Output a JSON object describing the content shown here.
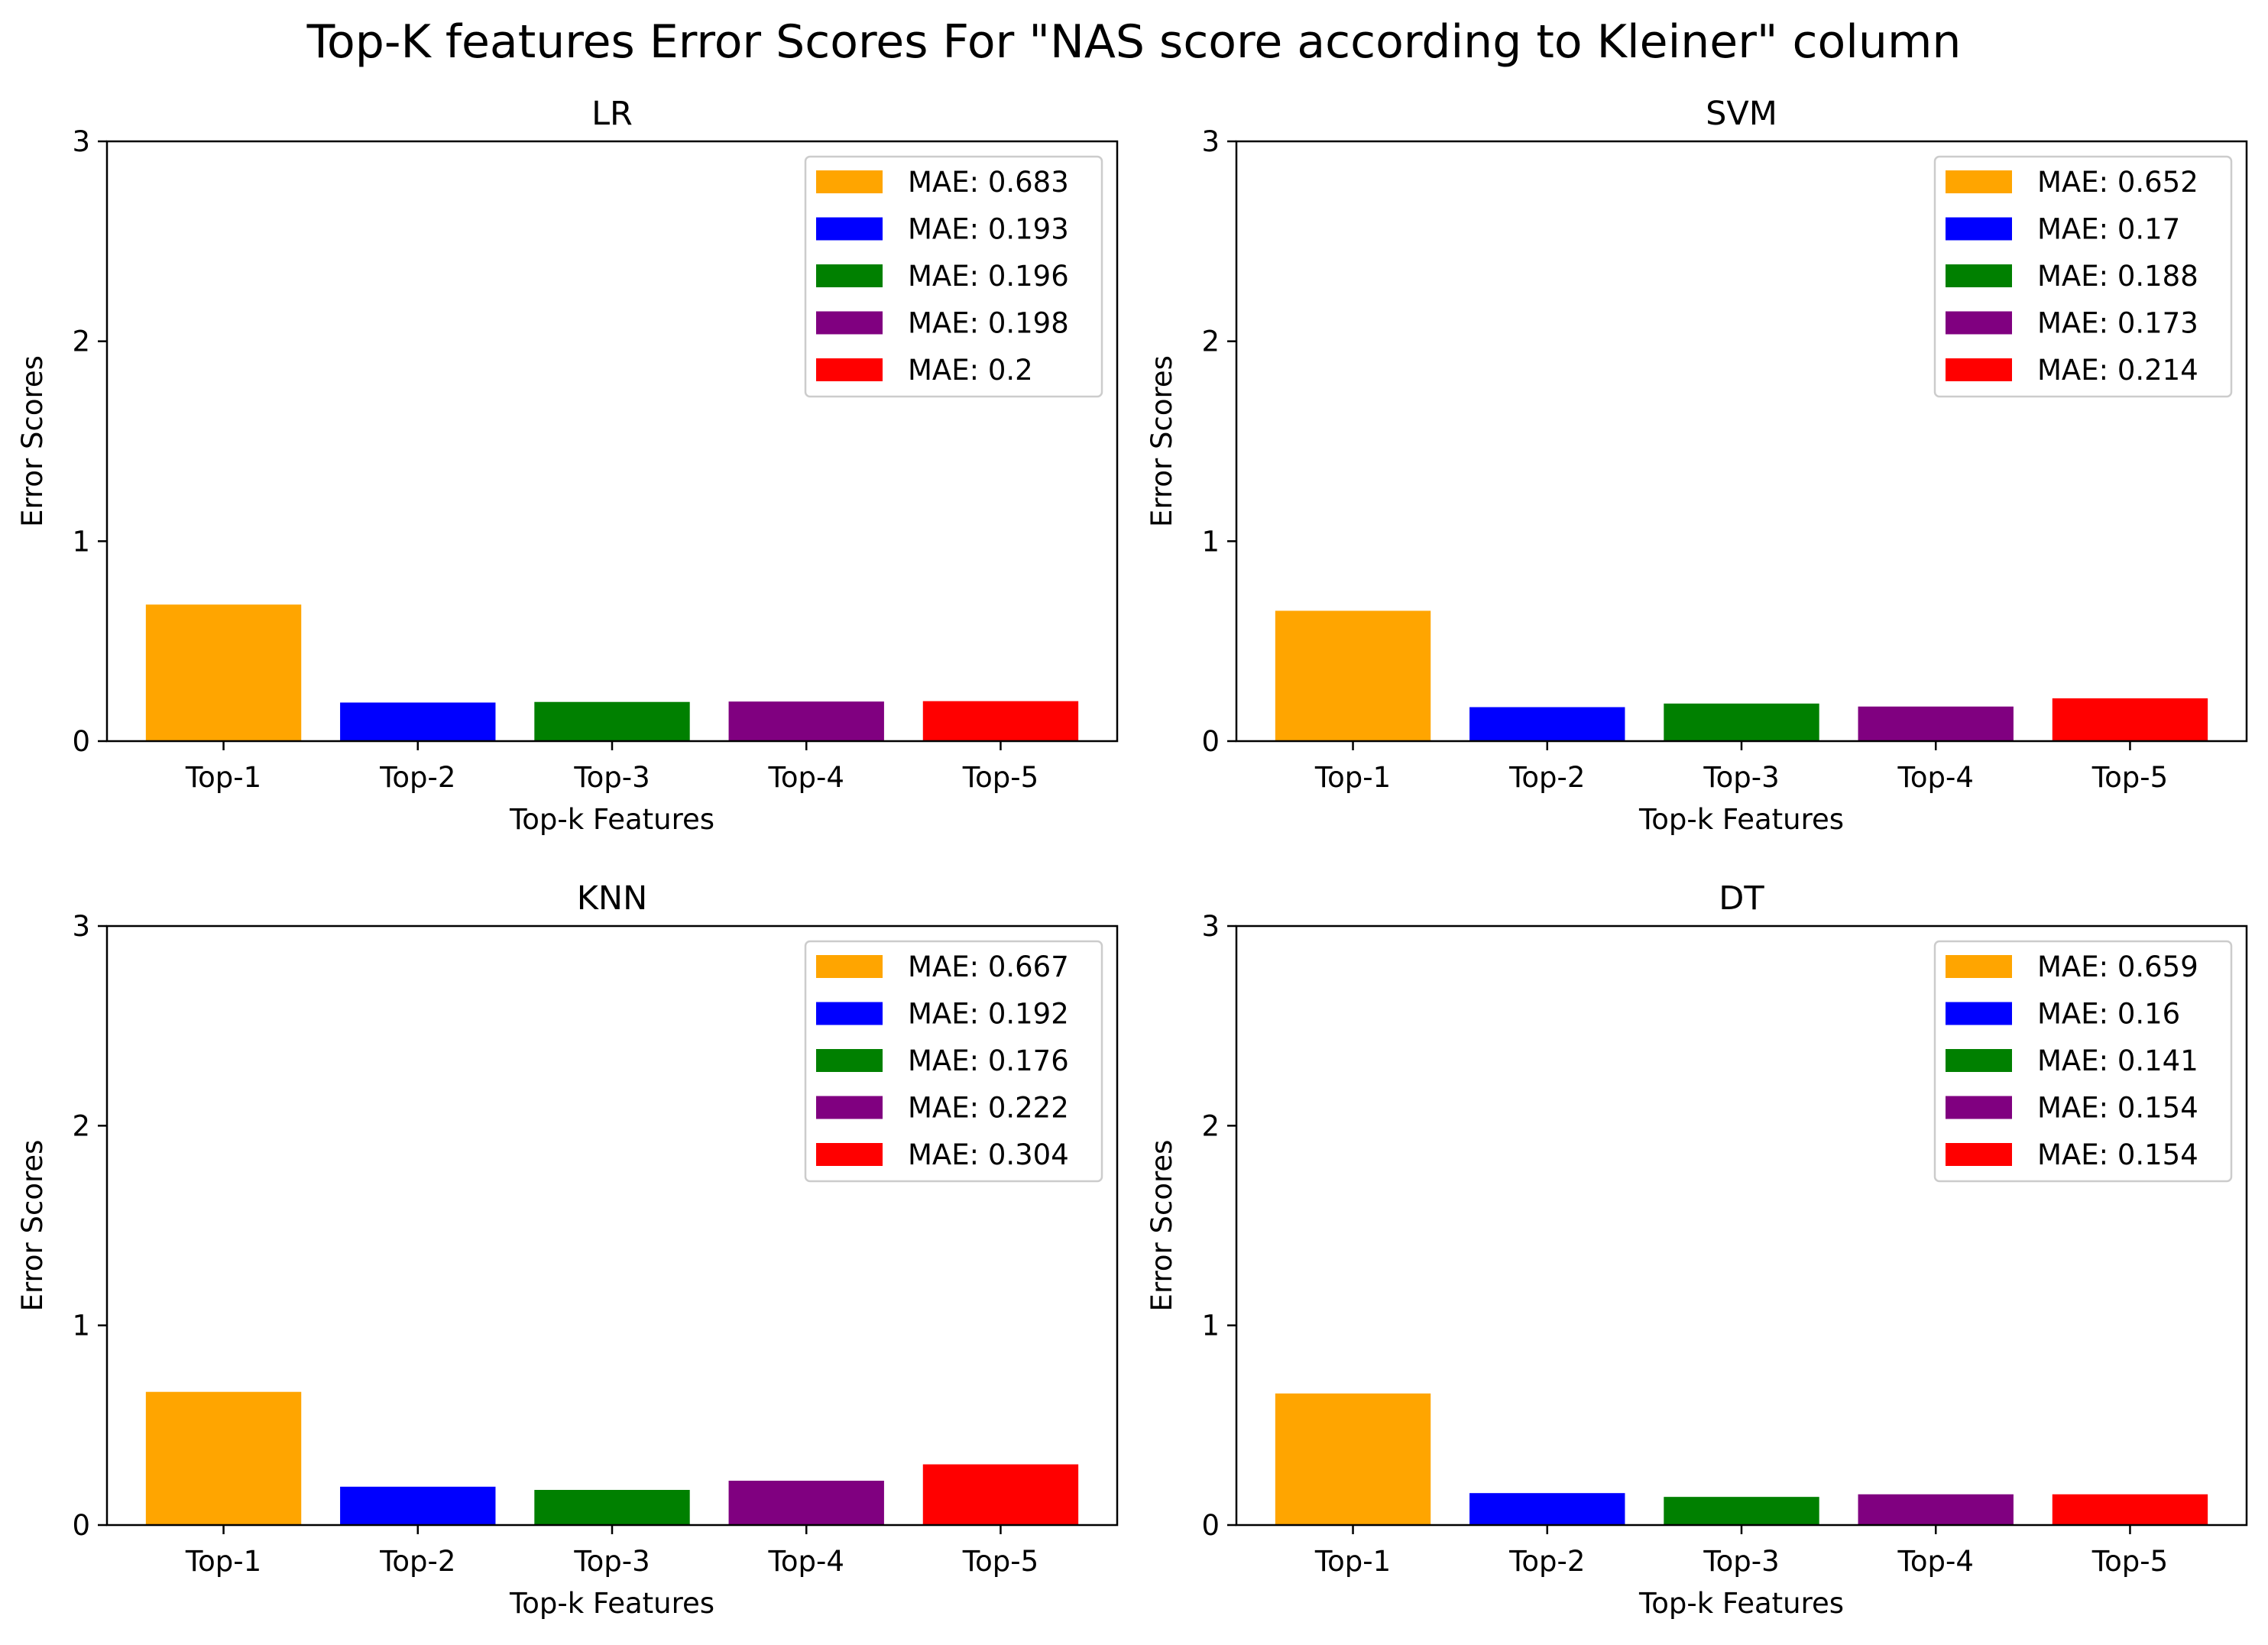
{
  "figure": {
    "title": "Top-K features Error Scores For \"NAS score according to Kleiner\" column"
  },
  "colors": [
    "#FFA500",
    "#0000FF",
    "#008000",
    "#800080",
    "#FF0000"
  ],
  "chart_data": [
    {
      "type": "bar",
      "title": "LR",
      "xlabel": "Top-k Features",
      "ylabel": "Error Scores",
      "categories": [
        "Top-1",
        "Top-2",
        "Top-3",
        "Top-4",
        "Top-5"
      ],
      "values": [
        0.683,
        0.193,
        0.196,
        0.198,
        0.2
      ],
      "legend": [
        "MAE: 0.683",
        "MAE: 0.193",
        "MAE: 0.196",
        "MAE: 0.198",
        "MAE: 0.2"
      ],
      "yticks": [
        0,
        1,
        2,
        3
      ],
      "ylim": [
        0,
        3
      ],
      "legend_loc": "upper right"
    },
    {
      "type": "bar",
      "title": "SVM",
      "xlabel": "Top-k Features",
      "ylabel": "Error Scores",
      "categories": [
        "Top-1",
        "Top-2",
        "Top-3",
        "Top-4",
        "Top-5"
      ],
      "values": [
        0.652,
        0.17,
        0.188,
        0.173,
        0.214
      ],
      "legend": [
        "MAE: 0.652",
        "MAE: 0.17",
        "MAE: 0.188",
        "MAE: 0.173",
        "MAE: 0.214"
      ],
      "yticks": [
        0,
        1,
        2,
        3
      ],
      "ylim": [
        0,
        3
      ],
      "legend_loc": "upper right"
    },
    {
      "type": "bar",
      "title": "KNN",
      "xlabel": "Top-k Features",
      "ylabel": "Error Scores",
      "categories": [
        "Top-1",
        "Top-2",
        "Top-3",
        "Top-4",
        "Top-5"
      ],
      "values": [
        0.667,
        0.192,
        0.176,
        0.222,
        0.304
      ],
      "legend": [
        "MAE: 0.667",
        "MAE: 0.192",
        "MAE: 0.176",
        "MAE: 0.222",
        "MAE: 0.304"
      ],
      "yticks": [
        0,
        1,
        2,
        3
      ],
      "ylim": [
        0,
        3
      ],
      "legend_loc": "upper right"
    },
    {
      "type": "bar",
      "title": "DT",
      "xlabel": "Top-k Features",
      "ylabel": "Error Scores",
      "categories": [
        "Top-1",
        "Top-2",
        "Top-3",
        "Top-4",
        "Top-5"
      ],
      "values": [
        0.659,
        0.16,
        0.141,
        0.154,
        0.154
      ],
      "legend": [
        "MAE: 0.659",
        "MAE: 0.16",
        "MAE: 0.141",
        "MAE: 0.154",
        "MAE: 0.154"
      ],
      "yticks": [
        0,
        1,
        2,
        3
      ],
      "ylim": [
        0,
        3
      ],
      "legend_loc": "upper right"
    }
  ]
}
